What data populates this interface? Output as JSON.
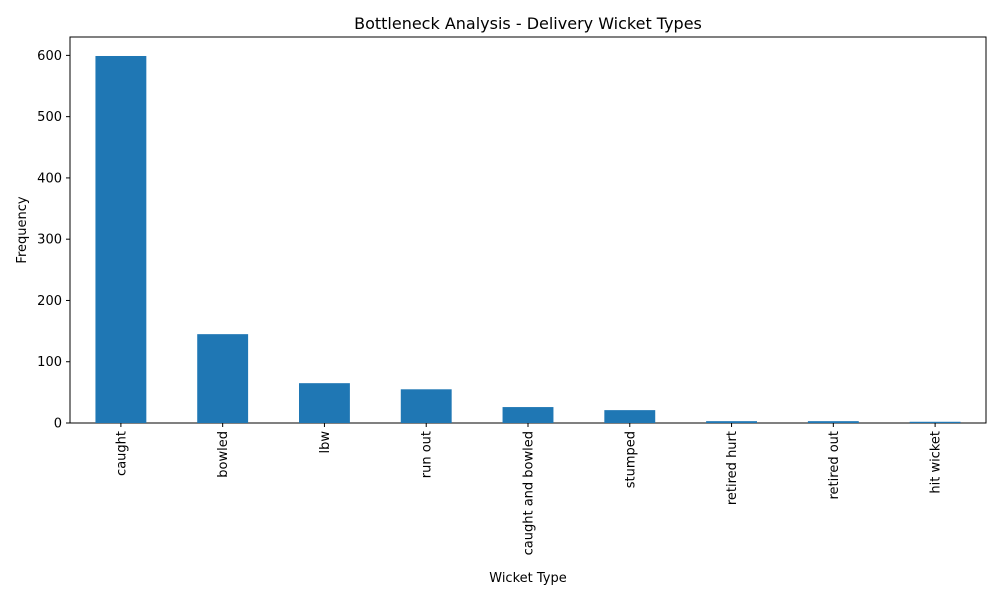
{
  "chart_data": {
    "type": "bar",
    "title": "Bottleneck Analysis - Delivery Wicket Types",
    "xlabel": "Wicket Type",
    "ylabel": "Frequency",
    "categories": [
      "caught",
      "bowled",
      "lbw",
      "run out",
      "caught and bowled",
      "stumped",
      "retired hurt",
      "retired out",
      "hit wicket"
    ],
    "values": [
      599,
      145,
      65,
      55,
      26,
      21,
      3,
      3,
      2
    ],
    "ylim": [
      0,
      630
    ],
    "yticks": [
      0,
      100,
      200,
      300,
      400,
      500,
      600
    ],
    "grid": false,
    "legend": "none",
    "colors": {
      "bar": "#1f77b4",
      "axis": "#000000",
      "background": "#ffffff"
    }
  }
}
